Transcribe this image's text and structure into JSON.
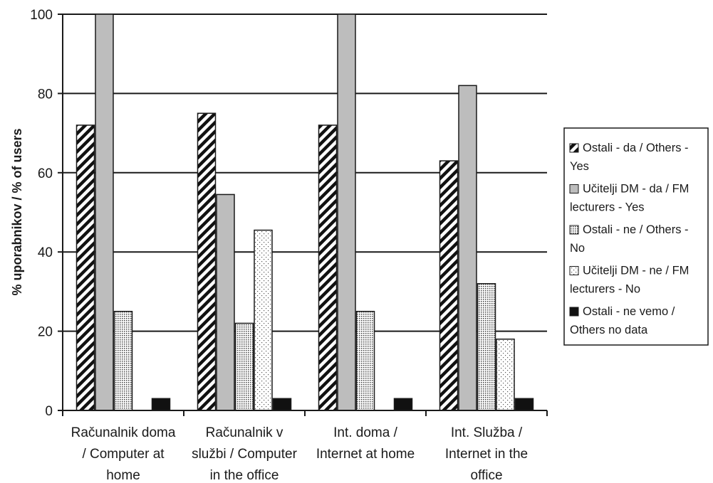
{
  "chart_data": {
    "type": "bar",
    "ylabel": "% uporabnikov / % of users",
    "ylim": [
      0,
      100
    ],
    "yticks": [
      "0",
      "20",
      "40",
      "60",
      "80",
      "100"
    ],
    "grid": true,
    "legend_position": "right",
    "categories": [
      [
        "Računalnik doma",
        "/ Computer at",
        "home"
      ],
      [
        "Računalnik v",
        "službi / Computer",
        "in the office"
      ],
      [
        "Int. doma /",
        "Internet at home"
      ],
      [
        "Int. Služba /",
        "Internet in the",
        "office"
      ]
    ],
    "series": [
      {
        "name": [
          "Ostali - da / Others -",
          "Yes"
        ],
        "pattern": "diagonal-stripes",
        "values": [
          72,
          75,
          72,
          63
        ]
      },
      {
        "name": [
          "Učitelji DM - da / FM",
          "lecturers - Yes"
        ],
        "pattern": "solid-gray",
        "color": "#bdbdbd",
        "values": [
          100,
          54.5,
          100,
          82
        ]
      },
      {
        "name": [
          "Ostali - ne / Others -",
          "No"
        ],
        "pattern": "dense-dots",
        "values": [
          25,
          22,
          25,
          32
        ]
      },
      {
        "name": [
          "Učitelji DM - ne / FM",
          "lecturers - No"
        ],
        "pattern": "sparse-dots",
        "values": [
          0,
          45.5,
          0,
          18
        ]
      },
      {
        "name": [
          "Ostali - ne vemo /",
          "Others no data"
        ],
        "pattern": "solid-black",
        "color": "#111111",
        "values": [
          3,
          3,
          3,
          3
        ]
      }
    ]
  }
}
